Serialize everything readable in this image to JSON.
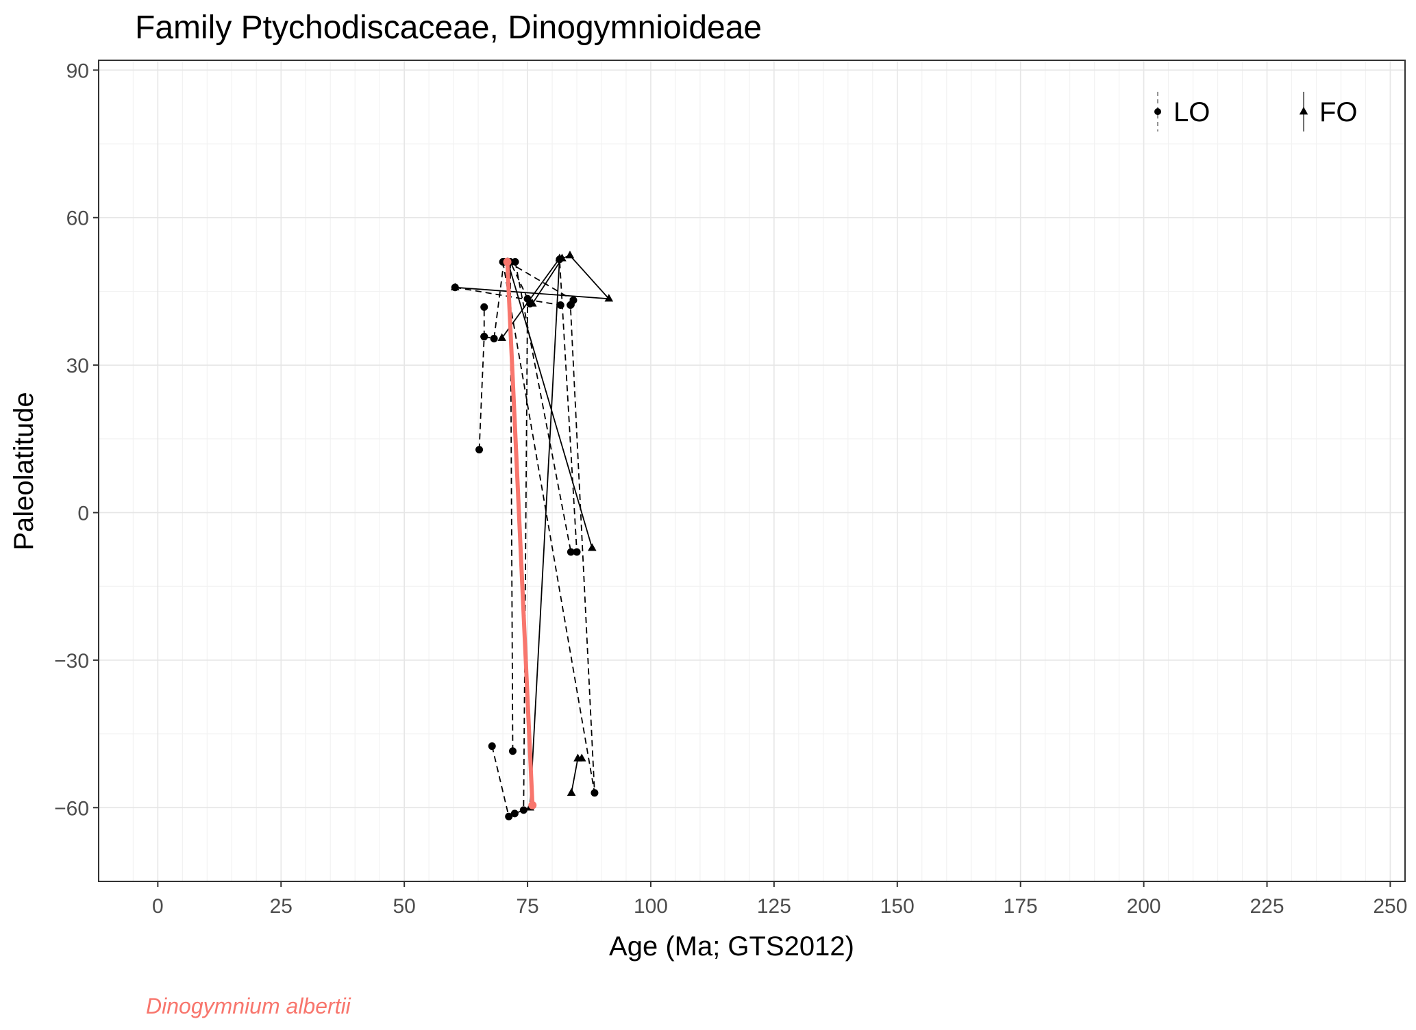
{
  "chart_data": {
    "type": "line",
    "title": "Family Ptychodiscaceae, Dinogymnioideae",
    "xlabel": "Age (Ma; GTS2012)",
    "ylabel": "Paleolatitude",
    "xlim": [
      -12,
      253
    ],
    "ylim": [
      -75,
      92
    ],
    "x_ticks": [
      0,
      25,
      50,
      75,
      100,
      125,
      150,
      175,
      200,
      225,
      250
    ],
    "x_tick_labels": [
      "0",
      "25",
      "50",
      "75",
      "100",
      "125",
      "150",
      "175",
      "200",
      "225",
      "250"
    ],
    "y_ticks": [
      90,
      60,
      30,
      0,
      -30,
      -60
    ],
    "y_tick_labels": [
      "90",
      "60",
      "30",
      "0",
      "−30",
      "−60"
    ],
    "grid": true,
    "legend": {
      "position": "top-right",
      "entries": [
        {
          "label": "LO",
          "shape": "circle",
          "linestyle": "dashed"
        },
        {
          "label": "FO",
          "shape": "triangle",
          "linestyle": "solid"
        }
      ]
    },
    "series": [
      {
        "kind": "LO",
        "points": [
          [
            65.2,
            12.8
          ],
          [
            66.2,
            35.8
          ],
          [
            66.2,
            41.8
          ]
        ]
      },
      {
        "kind": "LO",
        "points": [
          [
            66.2,
            35.8
          ],
          [
            68.2,
            35.4
          ],
          [
            70.2,
            51.0
          ]
        ]
      },
      {
        "kind": "LO",
        "points": [
          [
            67.8,
            -47.5
          ],
          [
            71.2,
            -61.8
          ],
          [
            72.4,
            -61.2
          ],
          [
            74.2,
            -60.5
          ],
          [
            75.0,
            43.5
          ]
        ]
      },
      {
        "kind": "LO",
        "points": [
          [
            72.0,
            -48.5
          ],
          [
            71.5,
            51.0
          ],
          [
            75.5,
            42.5
          ]
        ]
      },
      {
        "kind": "LO",
        "points": [
          [
            60.3,
            45.8
          ],
          [
            81.7,
            42.2
          ],
          [
            83.8,
            42.3
          ]
        ]
      },
      {
        "kind": "LO",
        "points": [
          [
            71.0,
            51.0
          ],
          [
            84.3,
            43.2
          ]
        ]
      },
      {
        "kind": "LO",
        "points": [
          [
            72.5,
            51.0
          ],
          [
            83.8,
            -8.0
          ],
          [
            85.0,
            -8.0
          ],
          [
            81.5,
            51.5
          ]
        ]
      },
      {
        "kind": "LO",
        "points": [
          [
            70.0,
            51.0
          ],
          [
            88.6,
            -57.0
          ],
          [
            83.7,
            42.2
          ]
        ]
      },
      {
        "kind": "FO",
        "points": [
          [
            60.3,
            45.8
          ],
          [
            91.5,
            43.5
          ],
          [
            83.6,
            52.3
          ],
          [
            82.0,
            51.7
          ],
          [
            76.0,
            42.5
          ]
        ]
      },
      {
        "kind": "FO",
        "points": [
          [
            69.8,
            35.5
          ],
          [
            81.5,
            51.7
          ],
          [
            75.5,
            -60.0
          ]
        ]
      },
      {
        "kind": "FO",
        "points": [
          [
            71.0,
            51.0
          ],
          [
            88.1,
            -7.2
          ]
        ]
      },
      {
        "kind": "FO",
        "points": [
          [
            83.9,
            -57.0
          ],
          [
            85.2,
            -50.0
          ],
          [
            86.0,
            -50.0
          ]
        ]
      }
    ],
    "highlight": {
      "name": "Dinogymnium albertii",
      "color": "#F8766D",
      "points": [
        [
          70.9,
          51.0
        ],
        [
          76.0,
          -59.5
        ]
      ]
    }
  },
  "caption": "Dinogymnium albertii"
}
